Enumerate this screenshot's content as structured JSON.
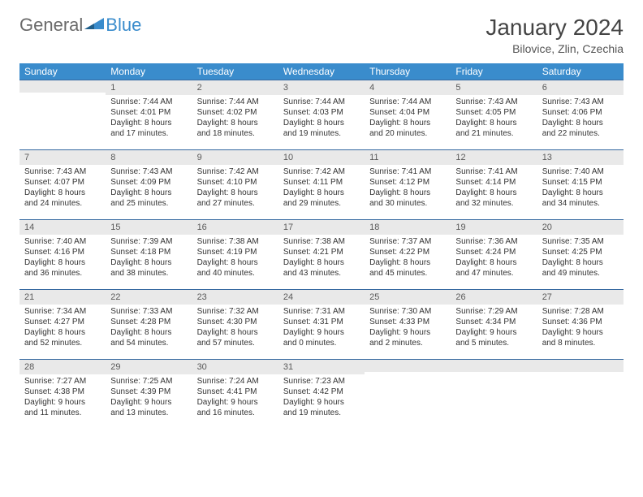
{
  "brand": {
    "part1": "General",
    "part2": "Blue"
  },
  "title": "January 2024",
  "location": "Bilovice, Zlin, Czechia",
  "colors": {
    "header_bg": "#3a8ccc",
    "header_text": "#ffffff",
    "daynum_bg": "#e9e9e9",
    "daynum_border": "#3568a0",
    "text": "#333333",
    "page_bg": "#ffffff"
  },
  "weekdays": [
    "Sunday",
    "Monday",
    "Tuesday",
    "Wednesday",
    "Thursday",
    "Friday",
    "Saturday"
  ],
  "weeks": [
    [
      {
        "n": "",
        "sr": "",
        "ss": "",
        "dl": ""
      },
      {
        "n": "1",
        "sr": "Sunrise: 7:44 AM",
        "ss": "Sunset: 4:01 PM",
        "dl": "Daylight: 8 hours and 17 minutes."
      },
      {
        "n": "2",
        "sr": "Sunrise: 7:44 AM",
        "ss": "Sunset: 4:02 PM",
        "dl": "Daylight: 8 hours and 18 minutes."
      },
      {
        "n": "3",
        "sr": "Sunrise: 7:44 AM",
        "ss": "Sunset: 4:03 PM",
        "dl": "Daylight: 8 hours and 19 minutes."
      },
      {
        "n": "4",
        "sr": "Sunrise: 7:44 AM",
        "ss": "Sunset: 4:04 PM",
        "dl": "Daylight: 8 hours and 20 minutes."
      },
      {
        "n": "5",
        "sr": "Sunrise: 7:43 AM",
        "ss": "Sunset: 4:05 PM",
        "dl": "Daylight: 8 hours and 21 minutes."
      },
      {
        "n": "6",
        "sr": "Sunrise: 7:43 AM",
        "ss": "Sunset: 4:06 PM",
        "dl": "Daylight: 8 hours and 22 minutes."
      }
    ],
    [
      {
        "n": "7",
        "sr": "Sunrise: 7:43 AM",
        "ss": "Sunset: 4:07 PM",
        "dl": "Daylight: 8 hours and 24 minutes."
      },
      {
        "n": "8",
        "sr": "Sunrise: 7:43 AM",
        "ss": "Sunset: 4:09 PM",
        "dl": "Daylight: 8 hours and 25 minutes."
      },
      {
        "n": "9",
        "sr": "Sunrise: 7:42 AM",
        "ss": "Sunset: 4:10 PM",
        "dl": "Daylight: 8 hours and 27 minutes."
      },
      {
        "n": "10",
        "sr": "Sunrise: 7:42 AM",
        "ss": "Sunset: 4:11 PM",
        "dl": "Daylight: 8 hours and 29 minutes."
      },
      {
        "n": "11",
        "sr": "Sunrise: 7:41 AM",
        "ss": "Sunset: 4:12 PM",
        "dl": "Daylight: 8 hours and 30 minutes."
      },
      {
        "n": "12",
        "sr": "Sunrise: 7:41 AM",
        "ss": "Sunset: 4:14 PM",
        "dl": "Daylight: 8 hours and 32 minutes."
      },
      {
        "n": "13",
        "sr": "Sunrise: 7:40 AM",
        "ss": "Sunset: 4:15 PM",
        "dl": "Daylight: 8 hours and 34 minutes."
      }
    ],
    [
      {
        "n": "14",
        "sr": "Sunrise: 7:40 AM",
        "ss": "Sunset: 4:16 PM",
        "dl": "Daylight: 8 hours and 36 minutes."
      },
      {
        "n": "15",
        "sr": "Sunrise: 7:39 AM",
        "ss": "Sunset: 4:18 PM",
        "dl": "Daylight: 8 hours and 38 minutes."
      },
      {
        "n": "16",
        "sr": "Sunrise: 7:38 AM",
        "ss": "Sunset: 4:19 PM",
        "dl": "Daylight: 8 hours and 40 minutes."
      },
      {
        "n": "17",
        "sr": "Sunrise: 7:38 AM",
        "ss": "Sunset: 4:21 PM",
        "dl": "Daylight: 8 hours and 43 minutes."
      },
      {
        "n": "18",
        "sr": "Sunrise: 7:37 AM",
        "ss": "Sunset: 4:22 PM",
        "dl": "Daylight: 8 hours and 45 minutes."
      },
      {
        "n": "19",
        "sr": "Sunrise: 7:36 AM",
        "ss": "Sunset: 4:24 PM",
        "dl": "Daylight: 8 hours and 47 minutes."
      },
      {
        "n": "20",
        "sr": "Sunrise: 7:35 AM",
        "ss": "Sunset: 4:25 PM",
        "dl": "Daylight: 8 hours and 49 minutes."
      }
    ],
    [
      {
        "n": "21",
        "sr": "Sunrise: 7:34 AM",
        "ss": "Sunset: 4:27 PM",
        "dl": "Daylight: 8 hours and 52 minutes."
      },
      {
        "n": "22",
        "sr": "Sunrise: 7:33 AM",
        "ss": "Sunset: 4:28 PM",
        "dl": "Daylight: 8 hours and 54 minutes."
      },
      {
        "n": "23",
        "sr": "Sunrise: 7:32 AM",
        "ss": "Sunset: 4:30 PM",
        "dl": "Daylight: 8 hours and 57 minutes."
      },
      {
        "n": "24",
        "sr": "Sunrise: 7:31 AM",
        "ss": "Sunset: 4:31 PM",
        "dl": "Daylight: 9 hours and 0 minutes."
      },
      {
        "n": "25",
        "sr": "Sunrise: 7:30 AM",
        "ss": "Sunset: 4:33 PM",
        "dl": "Daylight: 9 hours and 2 minutes."
      },
      {
        "n": "26",
        "sr": "Sunrise: 7:29 AM",
        "ss": "Sunset: 4:34 PM",
        "dl": "Daylight: 9 hours and 5 minutes."
      },
      {
        "n": "27",
        "sr": "Sunrise: 7:28 AM",
        "ss": "Sunset: 4:36 PM",
        "dl": "Daylight: 9 hours and 8 minutes."
      }
    ],
    [
      {
        "n": "28",
        "sr": "Sunrise: 7:27 AM",
        "ss": "Sunset: 4:38 PM",
        "dl": "Daylight: 9 hours and 11 minutes."
      },
      {
        "n": "29",
        "sr": "Sunrise: 7:25 AM",
        "ss": "Sunset: 4:39 PM",
        "dl": "Daylight: 9 hours and 13 minutes."
      },
      {
        "n": "30",
        "sr": "Sunrise: 7:24 AM",
        "ss": "Sunset: 4:41 PM",
        "dl": "Daylight: 9 hours and 16 minutes."
      },
      {
        "n": "31",
        "sr": "Sunrise: 7:23 AM",
        "ss": "Sunset: 4:42 PM",
        "dl": "Daylight: 9 hours and 19 minutes."
      },
      {
        "n": "",
        "sr": "",
        "ss": "",
        "dl": ""
      },
      {
        "n": "",
        "sr": "",
        "ss": "",
        "dl": ""
      },
      {
        "n": "",
        "sr": "",
        "ss": "",
        "dl": ""
      }
    ]
  ]
}
